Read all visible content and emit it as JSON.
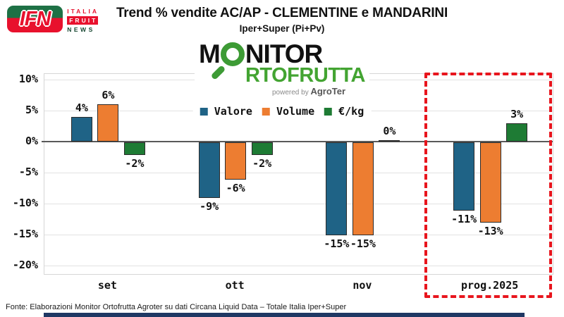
{
  "branding": {
    "ifn": {
      "acronym": "IFN",
      "italia": "ITALIA",
      "fruit": "FRUIT",
      "news": "NEWS"
    },
    "monitor": {
      "line1_prefix": "M",
      "line1_suffix": "NITOR",
      "line2": "RTOFRUTTA",
      "powered_by": "powered by ",
      "agroter": "AgroTer"
    }
  },
  "header": {
    "title": "Trend % vendite AC/AP - CLEMENTINE e MANDARINI",
    "subtitle": "Iper+Super (Pi+Pv)"
  },
  "colors": {
    "valore": "#1F6386",
    "volume": "#ED7D31",
    "eur_kg": "#1E7B34",
    "highlight_box": "#E8151D",
    "bottom_bar": "#1F3864"
  },
  "chart_data": {
    "type": "bar",
    "title": "Trend % vendite AC/AP - CLEMENTINE e MANDARINI",
    "subtitle": "Iper+Super (Pi+Pv)",
    "categories": [
      "set",
      "ott",
      "nov",
      "prog.2025"
    ],
    "series": [
      {
        "name": "Valore",
        "color": "#1F6386",
        "values": [
          4,
          -9,
          -15,
          -11
        ],
        "labels": [
          "4%",
          "-9%",
          "-15%",
          "-11%"
        ]
      },
      {
        "name": "Volume",
        "color": "#ED7D31",
        "values": [
          6,
          -6,
          -15,
          -13
        ],
        "labels": [
          "6%",
          "-6%",
          "-15%",
          "-13%"
        ]
      },
      {
        "name": "€/kg",
        "color": "#1E7B34",
        "values": [
          -2,
          -2,
          0,
          3
        ],
        "labels": [
          "-2%",
          "-2%",
          "0%",
          "3%"
        ]
      }
    ],
    "xlabel": "",
    "ylabel": "",
    "ylim": [
      -20,
      10
    ],
    "yticks": {
      "values": [
        10,
        5,
        0,
        -5,
        -10,
        -15,
        -20
      ],
      "labels": [
        "10%",
        "5%",
        "0%",
        "-5%",
        "-10%",
        "-15%",
        "-20%"
      ]
    },
    "grid": true,
    "legend_position": "top-center",
    "highlight": {
      "category": "prog.2025",
      "style": "red-dashed-box"
    }
  },
  "footer": {
    "source": "Fonte: Elaborazioni Monitor Ortofrutta Agroter su dati Circana Liquid Data – Totale Italia Iper+Super"
  }
}
